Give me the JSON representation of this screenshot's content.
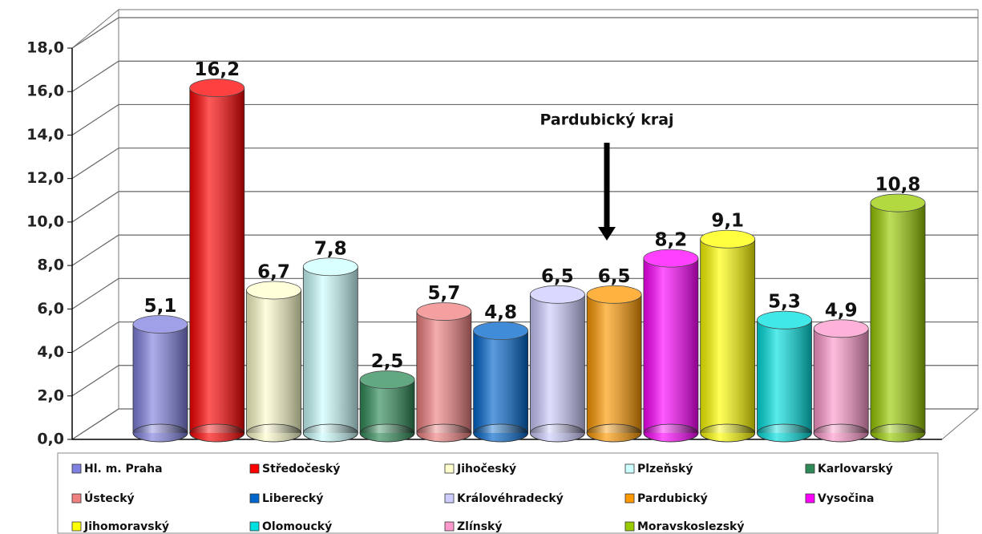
{
  "chart_data": {
    "type": "bar",
    "categories": [
      "Hl. m. Praha",
      "Středočeský",
      "Jihočeský",
      "Plzeňský",
      "Karlovarský",
      "Ústecký",
      "Liberecký",
      "Královéhradecký",
      "Pardubický",
      "Vysočina",
      "Jihomoravský",
      "Olomoucký",
      "Zlínský",
      "Moravskoslezský"
    ],
    "values": [
      5.1,
      16.2,
      6.7,
      7.8,
      2.5,
      5.7,
      4.8,
      6.5,
      6.5,
      8.2,
      9.1,
      5.3,
      4.9,
      10.8
    ],
    "value_labels": [
      "5,1",
      "16,2",
      "6,7",
      "7,8",
      "2,5",
      "5,7",
      "4,8",
      "6,5",
      "6,5",
      "8,2",
      "9,1",
      "5,3",
      "4,9",
      "10,8"
    ],
    "colors": [
      "#8080e0",
      "#ff0000",
      "#ffffcc",
      "#ccffff",
      "#2e8b57",
      "#f08080",
      "#0066cc",
      "#ccccff",
      "#ff9900",
      "#ff00ff",
      "#ffff00",
      "#00e0e0",
      "#ff99cc",
      "#99cc00"
    ],
    "ylim": [
      0,
      18
    ],
    "yticks": [
      {
        "value": 0,
        "label": "0,0"
      },
      {
        "value": 2,
        "label": "2,0"
      },
      {
        "value": 4,
        "label": "4,0"
      },
      {
        "value": 6,
        "label": "6,0"
      },
      {
        "value": 8,
        "label": "8,0"
      },
      {
        "value": 10,
        "label": "10,0"
      },
      {
        "value": 12,
        "label": "12,0"
      },
      {
        "value": 14,
        "label": "14,0"
      },
      {
        "value": 16,
        "label": "16,0"
      },
      {
        "value": 18,
        "label": "18,0"
      }
    ],
    "grid": true,
    "legend": "bottom",
    "annotation": "Pardubický kraj"
  }
}
